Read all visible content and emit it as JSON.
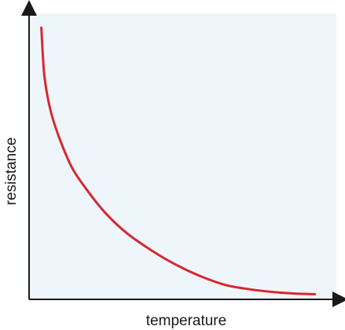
{
  "chart_data": {
    "type": "line",
    "title": "",
    "xlabel": "temperature",
    "ylabel": "resistance",
    "xlim": [
      0,
      1
    ],
    "ylim": [
      0,
      1
    ],
    "grid": false,
    "axis_ticks": false,
    "colors": {
      "plot_background": "#eef6fc",
      "axis": "#1a1a1a",
      "curve": "#d7282f"
    },
    "series": [
      {
        "x": [
          0.04,
          0.05,
          0.07,
          0.1,
          0.14,
          0.19,
          0.25,
          0.32,
          0.4,
          0.48,
          0.56,
          0.64,
          0.72,
          0.8,
          0.87,
          0.93
        ],
        "values": [
          0.95,
          0.78,
          0.66,
          0.56,
          0.46,
          0.38,
          0.3,
          0.23,
          0.17,
          0.12,
          0.08,
          0.05,
          0.035,
          0.025,
          0.02,
          0.018
        ]
      }
    ]
  }
}
